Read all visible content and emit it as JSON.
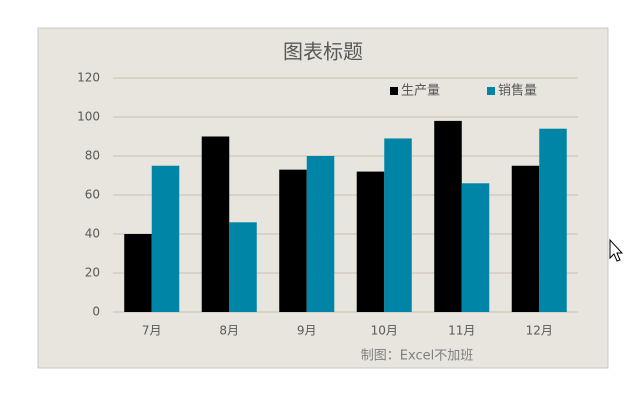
{
  "chart_data": {
    "type": "bar",
    "title": "图表标题",
    "categories": [
      "7月",
      "8月",
      "9月",
      "10月",
      "11月",
      "12月"
    ],
    "series": [
      {
        "name": "生产量",
        "color": "#000000",
        "values": [
          40,
          90,
          73,
          72,
          98,
          75
        ]
      },
      {
        "name": "销售量",
        "color": "#0085a6",
        "values": [
          75,
          46,
          80,
          89,
          66,
          94
        ]
      }
    ],
    "ylim": [
      0,
      120
    ],
    "yticks": [
      0,
      20,
      40,
      60,
      80,
      100,
      120
    ],
    "grid": true,
    "legend": "top-right",
    "annotation": "制图：Excel不加班"
  }
}
